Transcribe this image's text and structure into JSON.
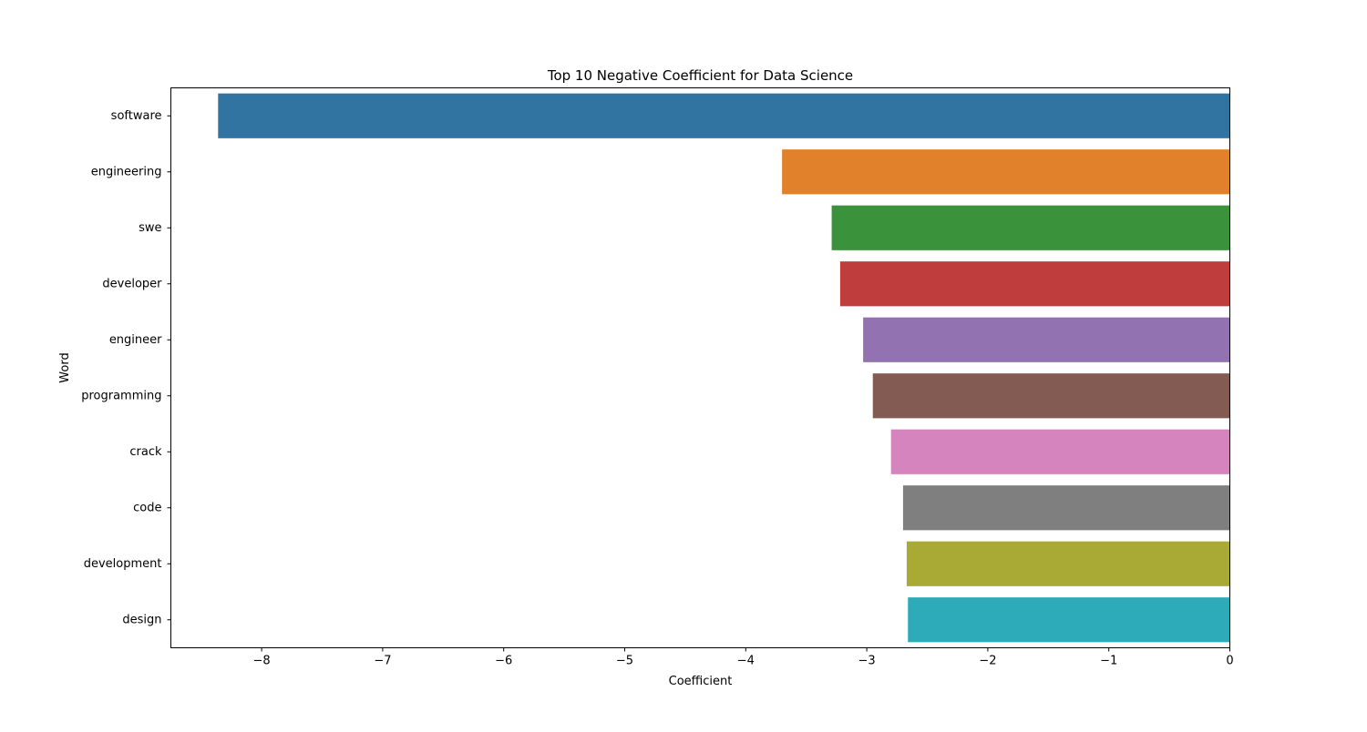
{
  "chart_data": {
    "type": "bar",
    "orientation": "horizontal",
    "title": "Top 10 Negative Coefficient for Data Science",
    "xlabel": "Coefficient",
    "ylabel": "Word",
    "xlim": [
      -8.75,
      0
    ],
    "x_ticks": [
      -8,
      -7,
      -6,
      -5,
      -4,
      -3,
      -2,
      -1,
      0
    ],
    "x_tick_labels": [
      "−8",
      "−7",
      "−6",
      "−5",
      "−4",
      "−3",
      "−2",
      "−1",
      "0"
    ],
    "categories": [
      "software",
      "engineering",
      "swe",
      "developer",
      "engineer",
      "programming",
      "crack",
      "code",
      "development",
      "design"
    ],
    "values": [
      -8.36,
      -3.7,
      -3.29,
      -3.22,
      -3.03,
      -2.95,
      -2.8,
      -2.7,
      -2.67,
      -2.66
    ],
    "colors": [
      "#3274a1",
      "#e1812c",
      "#3a923a",
      "#c03d3e",
      "#9372b2",
      "#845b53",
      "#d684bd",
      "#7f7f7f",
      "#a9aa35",
      "#2eabb8"
    ],
    "grid": false,
    "legend": "none"
  }
}
